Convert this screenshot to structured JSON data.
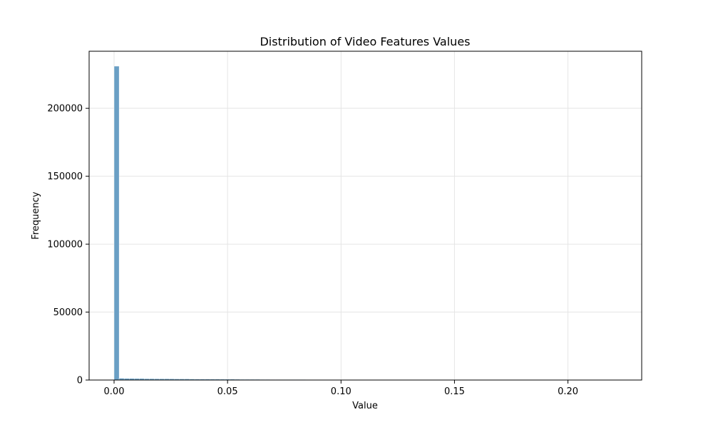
{
  "chart_data": {
    "type": "bar",
    "title": "Distribution of Video Features Values",
    "xlabel": "Value",
    "ylabel": "Frequency",
    "xlim": [
      -0.011,
      0.2325
    ],
    "ylim": [
      0,
      242000
    ],
    "xticks": [
      0.0,
      0.05,
      0.1,
      0.15,
      0.2
    ],
    "xtick_labels": [
      "0.00",
      "0.05",
      "0.10",
      "0.15",
      "0.20"
    ],
    "yticks": [
      0,
      50000,
      100000,
      150000,
      200000
    ],
    "ytick_labels": [
      "0",
      "50000",
      "100000",
      "150000",
      "200000"
    ],
    "grid": true,
    "bar_color": "#6a9fc4",
    "bin_start": 0.0,
    "bin_width": 0.00222,
    "values": [
      231000,
      1300,
      1200,
      1150,
      1100,
      1100,
      1000,
      1000,
      950,
      900,
      900,
      850,
      800,
      800,
      800,
      750,
      700,
      700,
      700,
      650,
      650,
      600,
      600,
      600,
      550,
      500,
      500,
      500,
      500,
      450,
      450,
      400,
      400,
      350,
      350,
      300,
      300,
      300,
      250,
      250,
      250,
      250,
      200,
      200,
      200,
      200,
      150,
      150,
      150,
      150,
      100,
      100,
      100,
      100,
      100,
      100,
      80,
      80,
      80,
      60,
      60,
      60,
      50,
      50,
      50,
      40,
      40,
      40,
      30,
      30,
      30,
      30,
      20,
      20,
      20,
      20,
      20,
      10,
      10,
      10,
      10,
      10,
      10,
      10,
      10,
      5,
      5,
      5,
      5,
      5,
      5,
      5,
      3,
      3,
      3,
      2,
      2,
      2,
      1,
      1
    ]
  }
}
